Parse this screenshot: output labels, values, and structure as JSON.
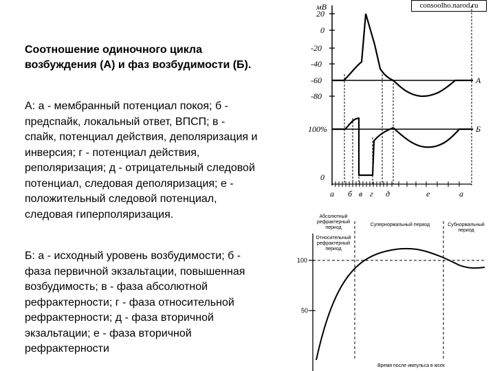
{
  "watermark": "consoolho.narod.ru",
  "title": "Соотношение одиночного цикла возбуждения (А) и фаз возбудимости (Б).",
  "desc_a": "А: а - мембранный потенциал покоя; б - предспайк, локальный ответ, ВПСП; в - спайк, потенциал действия, деполяризация и инверсия; г - потенциал действия, реполяризация; д - отрицательный следовой потенциал, следовая деполяризация; е - положительный следовой потенциал, следовая гиперполяризация.",
  "desc_b": "Б: а - исходный уровень возбудимости; б - фаза первичной экзальтации, повышенная возбудимость; в - фаза абсолютной рефрактерности; г - фаза относительной рефрактерности; д - фаза вторичной экзальтации; е - фаза вторичной рефрактерности",
  "top_figure": {
    "unit": "мВ",
    "y_ticks": [
      "20",
      "0",
      "-20",
      "-40",
      "-60",
      "-80"
    ],
    "excitability_labels": [
      "100%",
      "0"
    ],
    "curve_labels": [
      "А",
      "Б"
    ],
    "phase_labels": [
      "а",
      "б",
      "в",
      "г",
      "д",
      "е",
      "а"
    ]
  },
  "bottom_figure": {
    "y_ticks": [
      "100",
      "50"
    ],
    "periods": [
      "Абсолютный рефрактерный период",
      "Относительный рефрактерный период",
      "Супернормальный период",
      "Субнормальный период"
    ],
    "xlabel": "Время после импульса в мсек"
  },
  "colors": {
    "ink": "#000000",
    "background": "#ffffff"
  }
}
